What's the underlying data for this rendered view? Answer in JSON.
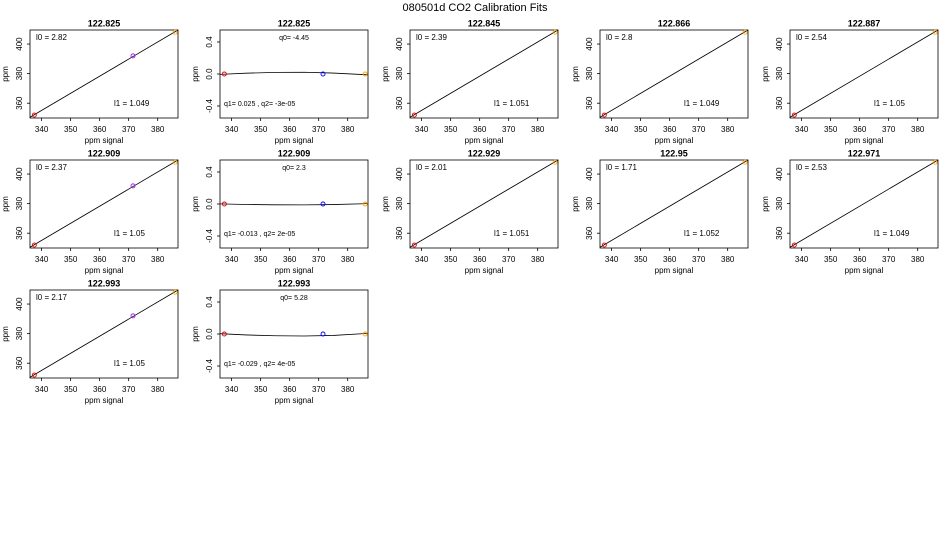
{
  "title": "080501d   CO2 Calibration Fits",
  "chart_data": [
    {
      "type": "scatter",
      "title": "122.825",
      "x_label": "ppm signal",
      "y_label": "ppm",
      "xlim": [
        336,
        387
      ],
      "ylim": [
        350,
        409.5
      ],
      "xticks": [
        340,
        350,
        360,
        370,
        380
      ],
      "yticks": [
        360,
        380,
        400
      ],
      "x": [
        337.5,
        371.5,
        386
      ],
      "y": [
        352,
        392,
        408
      ],
      "colors": [
        "#e00000",
        "#a020f0",
        "#ffa500"
      ],
      "fit": {
        "x": [
          336,
          387
        ],
        "y": [
          350.5,
          409.5
        ]
      },
      "annotations": [
        "l0 =  2.82",
        "l1 =  1.049"
      ]
    },
    {
      "type": "scatter",
      "title": "122.825",
      "x_label": "ppm signal",
      "y_label": "ppm",
      "xlim": [
        336,
        387
      ],
      "ylim": [
        -0.55,
        0.55
      ],
      "xticks": [
        340,
        350,
        360,
        370,
        380
      ],
      "yticks": [
        -0.4,
        {
          "value": 0,
          "label": "0.0"
        },
        0.4
      ],
      "x": [
        337.5,
        371.5,
        386
      ],
      "y": [
        0,
        0,
        0
      ],
      "colors": [
        "#e00000",
        "#0000ff",
        "#ffa500"
      ],
      "fit": {
        "x": [
          336,
          345,
          355,
          365,
          375,
          387
        ],
        "y": [
          -0.005,
          0.01,
          0.02,
          0.022,
          0.012,
          -0.01
        ]
      },
      "annotations": [
        "q0= -4.45",
        "q1= 0.025 , q2= -3e-05"
      ]
    },
    {
      "type": "scatter",
      "title": "122.845",
      "x_label": "ppm signal",
      "y_label": "ppm",
      "xlim": [
        336,
        387
      ],
      "ylim": [
        350,
        409.5
      ],
      "xticks": [
        340,
        350,
        360,
        370,
        380
      ],
      "yticks": [
        360,
        380,
        400
      ],
      "x": [
        337.5,
        386
      ],
      "y": [
        352,
        408
      ],
      "colors": [
        "#e00000",
        "#ffa500"
      ],
      "fit": {
        "x": [
          336,
          387
        ],
        "y": [
          350.5,
          409.5
        ]
      },
      "annotations": [
        "l0 =  2.39",
        "l1 =  1.051"
      ]
    },
    {
      "type": "scatter",
      "title": "122.866",
      "x_label": "ppm signal",
      "y_label": "ppm",
      "xlim": [
        336,
        387
      ],
      "ylim": [
        350,
        409.5
      ],
      "xticks": [
        340,
        350,
        360,
        370,
        380
      ],
      "yticks": [
        360,
        380,
        400
      ],
      "x": [
        337.5,
        386
      ],
      "y": [
        352,
        408
      ],
      "colors": [
        "#e00000",
        "#ffa500"
      ],
      "fit": {
        "x": [
          336,
          387
        ],
        "y": [
          350.5,
          409.5
        ]
      },
      "annotations": [
        "l0 =  2.8",
        "l1 =  1.049"
      ]
    },
    {
      "type": "scatter",
      "title": "122.887",
      "x_label": "ppm signal",
      "y_label": "ppm",
      "xlim": [
        336,
        387
      ],
      "ylim": [
        350,
        409.5
      ],
      "xticks": [
        340,
        350,
        360,
        370,
        380
      ],
      "yticks": [
        360,
        380,
        400
      ],
      "x": [
        337.5,
        386
      ],
      "y": [
        352,
        408
      ],
      "colors": [
        "#e00000",
        "#ffa500"
      ],
      "fit": {
        "x": [
          336,
          387
        ],
        "y": [
          350.5,
          409.5
        ]
      },
      "annotations": [
        "l0 =  2.54",
        "l1 =  1.05"
      ]
    },
    {
      "type": "scatter",
      "title": "122.909",
      "x_label": "ppm signal",
      "y_label": "ppm",
      "xlim": [
        336,
        387
      ],
      "ylim": [
        350,
        409.5
      ],
      "xticks": [
        340,
        350,
        360,
        370,
        380
      ],
      "yticks": [
        360,
        380,
        400
      ],
      "x": [
        337.5,
        371.5,
        386
      ],
      "y": [
        352,
        392,
        408
      ],
      "colors": [
        "#e00000",
        "#a020f0",
        "#ffa500"
      ],
      "fit": {
        "x": [
          336,
          387
        ],
        "y": [
          350.5,
          409.5
        ]
      },
      "annotations": [
        "l0 =  2.37",
        "l1 =  1.05"
      ]
    },
    {
      "type": "scatter",
      "title": "122.909",
      "x_label": "ppm signal",
      "y_label": "ppm",
      "xlim": [
        336,
        387
      ],
      "ylim": [
        -0.55,
        0.55
      ],
      "xticks": [
        340,
        350,
        360,
        370,
        380
      ],
      "yticks": [
        -0.4,
        {
          "value": 0,
          "label": "0.0"
        },
        0.4
      ],
      "x": [
        337.5,
        371.5,
        386
      ],
      "y": [
        0,
        0,
        0
      ],
      "colors": [
        "#e00000",
        "#0000ff",
        "#ffa500"
      ],
      "fit": {
        "x": [
          336,
          345,
          355,
          365,
          375,
          387
        ],
        "y": [
          0.002,
          -0.006,
          -0.01,
          -0.011,
          -0.007,
          0.005
        ]
      },
      "annotations": [
        "q0= 2.3",
        "q1= -0.013 , q2= 2e-05"
      ]
    },
    {
      "type": "scatter",
      "title": "122.929",
      "x_label": "ppm signal",
      "y_label": "ppm",
      "xlim": [
        336,
        387
      ],
      "ylim": [
        350,
        409.5
      ],
      "xticks": [
        340,
        350,
        360,
        370,
        380
      ],
      "yticks": [
        360,
        380,
        400
      ],
      "x": [
        337.5,
        386
      ],
      "y": [
        352,
        408
      ],
      "colors": [
        "#e00000",
        "#ffa500"
      ],
      "fit": {
        "x": [
          336,
          387
        ],
        "y": [
          350.5,
          409.5
        ]
      },
      "annotations": [
        "l0 =  2.01",
        "l1 =  1.051"
      ]
    },
    {
      "type": "scatter",
      "title": "122.95",
      "x_label": "ppm signal",
      "y_label": "ppm",
      "xlim": [
        336,
        387
      ],
      "ylim": [
        350,
        409.5
      ],
      "xticks": [
        340,
        350,
        360,
        370,
        380
      ],
      "yticks": [
        360,
        380,
        400
      ],
      "x": [
        337.5,
        386
      ],
      "y": [
        352,
        408
      ],
      "colors": [
        "#e00000",
        "#ffa500"
      ],
      "fit": {
        "x": [
          336,
          387
        ],
        "y": [
          350.5,
          409.5
        ]
      },
      "annotations": [
        "l0 =  1.71",
        "l1 =  1.052"
      ]
    },
    {
      "type": "scatter",
      "title": "122.971",
      "x_label": "ppm signal",
      "y_label": "ppm",
      "xlim": [
        336,
        387
      ],
      "ylim": [
        350,
        409.5
      ],
      "xticks": [
        340,
        350,
        360,
        370,
        380
      ],
      "yticks": [
        360,
        380,
        400
      ],
      "x": [
        337.5,
        386
      ],
      "y": [
        352,
        408
      ],
      "colors": [
        "#e00000",
        "#ffa500"
      ],
      "fit": {
        "x": [
          336,
          387
        ],
        "y": [
          350.5,
          409.5
        ]
      },
      "annotations": [
        "l0 =  2.53",
        "l1 =  1.049"
      ]
    },
    {
      "type": "scatter",
      "title": "122.993",
      "x_label": "ppm signal",
      "y_label": "ppm",
      "xlim": [
        336,
        387
      ],
      "ylim": [
        350,
        409.5
      ],
      "xticks": [
        340,
        350,
        360,
        370,
        380
      ],
      "yticks": [
        360,
        380,
        400
      ],
      "x": [
        337.5,
        371.5,
        386
      ],
      "y": [
        352,
        392,
        408
      ],
      "colors": [
        "#e00000",
        "#a020f0",
        "#ffa500"
      ],
      "fit": {
        "x": [
          336,
          387
        ],
        "y": [
          350.5,
          409.5
        ]
      },
      "annotations": [
        "l0 =  2.17",
        "l1 =  1.05"
      ]
    },
    {
      "type": "scatter",
      "title": "122.993",
      "x_label": "ppm signal",
      "y_label": "ppm",
      "xlim": [
        336,
        387
      ],
      "ylim": [
        -0.55,
        0.55
      ],
      "xticks": [
        340,
        350,
        360,
        370,
        380
      ],
      "yticks": [
        -0.4,
        {
          "value": 0,
          "label": "0.0"
        },
        0.4
      ],
      "x": [
        337.5,
        371.5,
        386
      ],
      "y": [
        0,
        0,
        0
      ],
      "colors": [
        "#e00000",
        "#0000ff",
        "#ffa500"
      ],
      "fit": {
        "x": [
          336,
          345,
          355,
          365,
          375,
          387
        ],
        "y": [
          0.004,
          -0.012,
          -0.022,
          -0.025,
          -0.018,
          0.008
        ]
      },
      "annotations": [
        "q0= 5.28",
        "q1= -0.029 , q2= 4e-05"
      ]
    }
  ]
}
